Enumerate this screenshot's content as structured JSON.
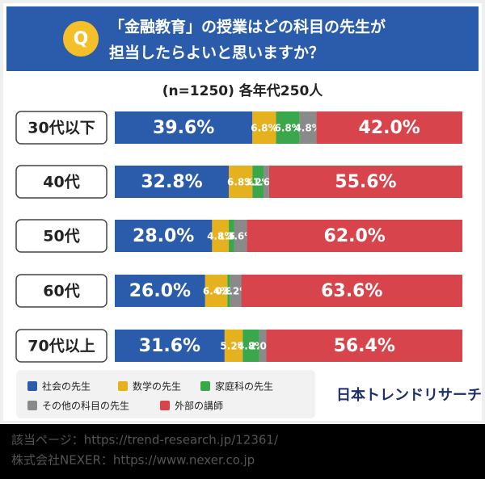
{
  "badge": "Q",
  "chart_data": {
    "type": "stacked-bar",
    "orientation": "horizontal",
    "title_lines": [
      "「金融教育」の授業はどの科目の先生が",
      "担当したらよいと思いますか？"
    ],
    "subtitle": "(n=1250) 各年代250人",
    "categories": [
      "30代以下",
      "40代",
      "50代",
      "60代",
      "70代以上"
    ],
    "series": [
      {
        "name": "社会の先生",
        "color": "#2b5cab",
        "values": [
          39.6,
          32.8,
          28.0,
          26.0,
          31.6
        ],
        "value_labels": [
          "39.6%",
          "32.8%",
          "28.0%",
          "26.0%",
          "31.6%"
        ]
      },
      {
        "name": "数学の先生",
        "color": "#e6b11f",
        "values": [
          6.8,
          6.8,
          4.8,
          6.4,
          5.2
        ],
        "value_labels": [
          "6.8%",
          "6.8%",
          "4.8%",
          "6.4%",
          "5.2%"
        ]
      },
      {
        "name": "家庭科の先生",
        "color": "#3aa84a",
        "values": [
          6.8,
          3.2,
          1.6,
          0.8,
          4.8
        ],
        "value_labels": [
          "6.8%",
          "3.2%",
          "1.6%",
          "0.8%",
          "4.8%"
        ]
      },
      {
        "name": "その他の科目の先生",
        "color": "#8a8a8a",
        "values": [
          4.8,
          1.6,
          3.6,
          3.2,
          2.0
        ],
        "value_labels": [
          "4.8%",
          "1.6%",
          "3.6%",
          "3.2%",
          "2.0%"
        ]
      },
      {
        "name": "外部の講師",
        "color": "#d8444b",
        "values": [
          42.0,
          55.6,
          62.0,
          63.6,
          56.4
        ],
        "value_labels": [
          "42.0%",
          "55.6%",
          "62.0%",
          "63.6%",
          "56.4%"
        ]
      }
    ]
  },
  "brand": "日本トレンドリサーチ",
  "footer": [
    "該当ページ：https://trend-research.jp/12361/",
    "株式会社NEXER：https://www.nexer.co.jp"
  ]
}
